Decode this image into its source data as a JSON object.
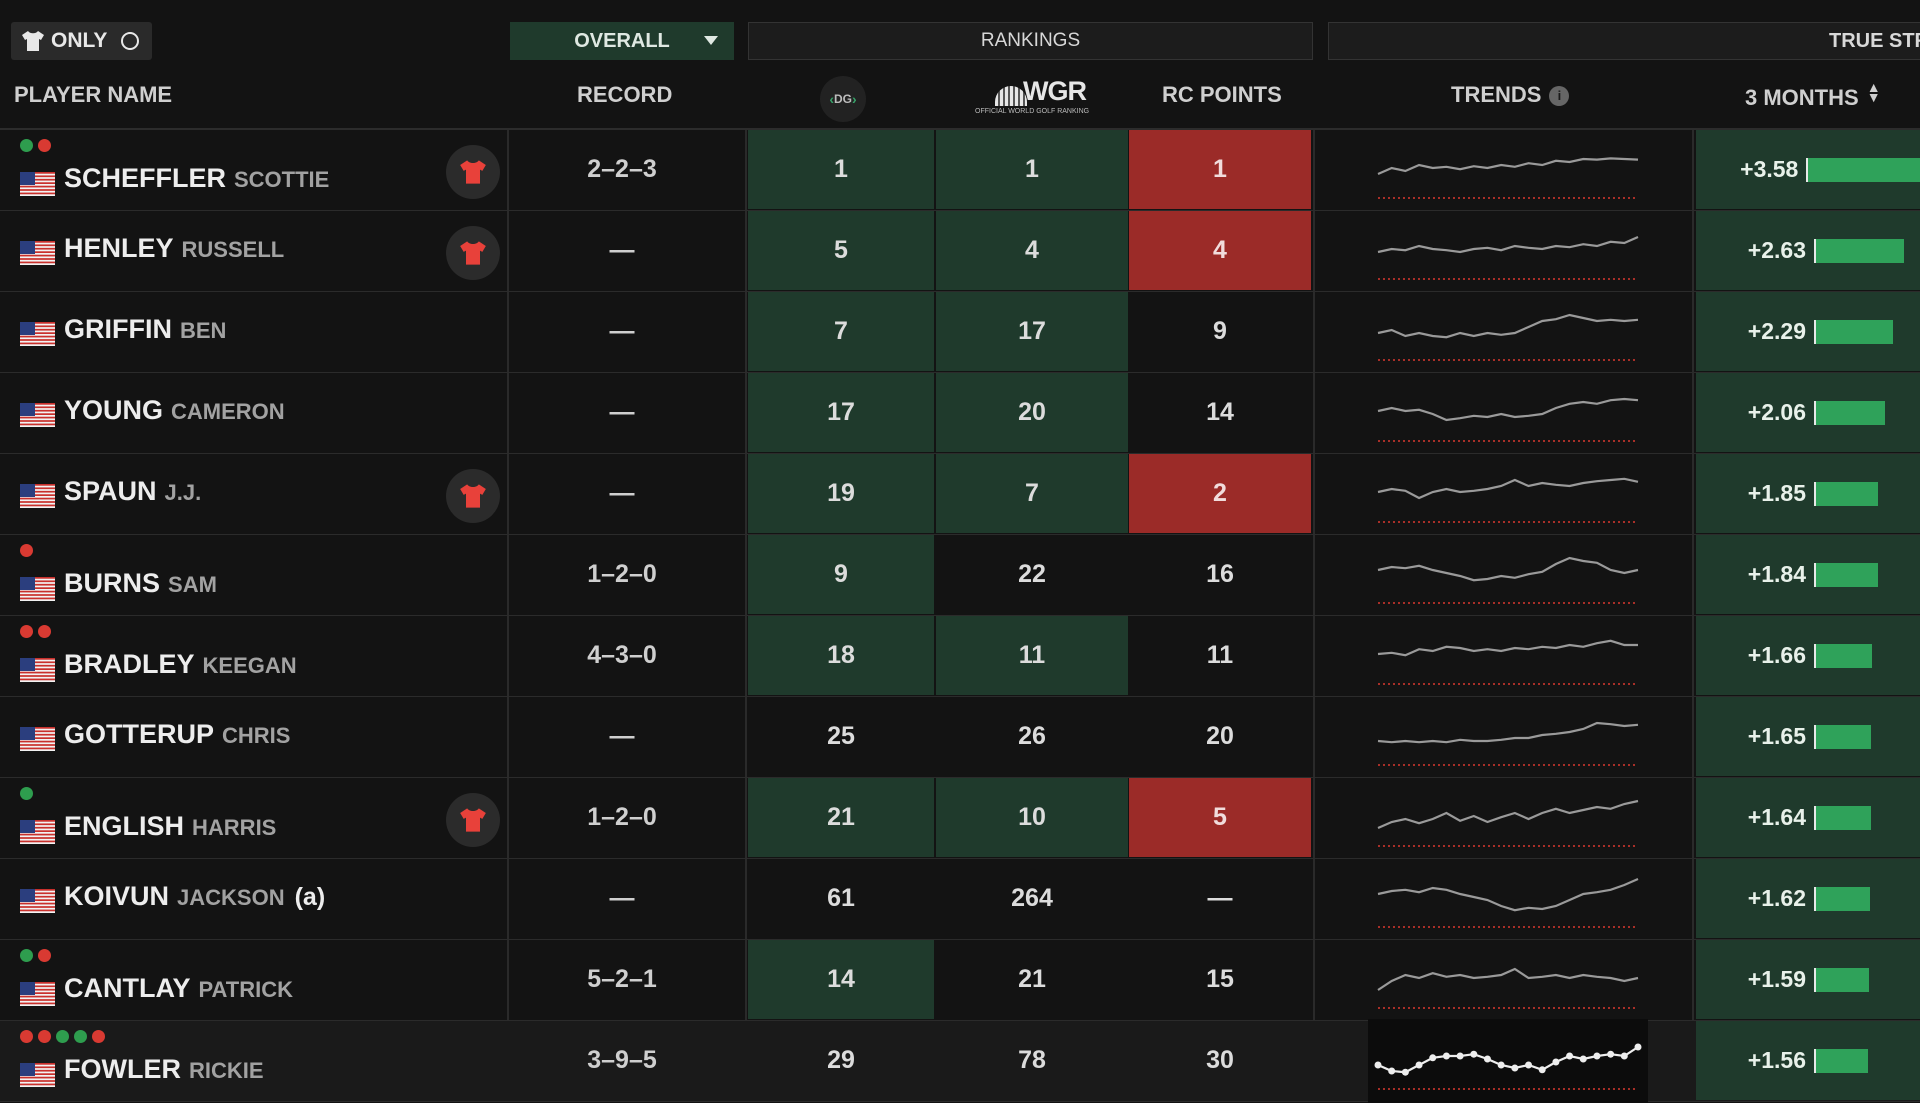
{
  "filters": {
    "only_label": "ONLY",
    "overall_label": "OVERALL",
    "rankings_label": "RANKINGS",
    "true_strength_label": "TRUE STR"
  },
  "header": {
    "player_name": "PLAYER NAME",
    "record": "RECORD",
    "dg_toggle": "DG",
    "owgr_logo": "WGR",
    "owgr_sub": "OFFICIAL WORLD GOLF RANKING",
    "rc_points": "RC POINTS",
    "trends": "TRENDS",
    "period": "3 MONTHS"
  },
  "colors": {
    "green_cell": "#1f3a2c",
    "red_cell": "#9b2b28",
    "bar": "#2fa25a",
    "dot_green": "#2e9d4e",
    "dot_red": "#d93a32"
  },
  "players": [
    {
      "last": "SCHEFFLER",
      "first": "SCOTTIE",
      "amateur": "",
      "dots": [
        "g",
        "r"
      ],
      "shirt": true,
      "record": "2–2–3",
      "dg": "1",
      "wgr": "1",
      "rc": "1",
      "dg_hl": true,
      "wgr_hl": true,
      "rc_hl": true,
      "ts": "+3.58",
      "ts_value": 3.58,
      "trend": [
        0.6,
        0.5,
        0.55,
        0.45,
        0.5,
        0.48,
        0.52,
        0.47,
        0.5,
        0.45,
        0.48,
        0.42,
        0.45,
        0.38,
        0.4,
        0.35,
        0.36,
        0.34,
        0.35,
        0.36
      ],
      "highlight": false
    },
    {
      "last": "HENLEY",
      "first": "RUSSELL",
      "amateur": "",
      "dots": [],
      "shirt": true,
      "record": "—",
      "dg": "5",
      "wgr": "4",
      "rc": "4",
      "dg_hl": true,
      "wgr_hl": true,
      "rc_hl": true,
      "ts": "+2.63",
      "ts_value": 2.63,
      "trend": [
        0.55,
        0.5,
        0.52,
        0.45,
        0.5,
        0.52,
        0.55,
        0.5,
        0.48,
        0.52,
        0.45,
        0.48,
        0.5,
        0.45,
        0.47,
        0.42,
        0.45,
        0.38,
        0.4,
        0.3
      ],
      "highlight": false
    },
    {
      "last": "GRIFFIN",
      "first": "BEN",
      "amateur": "",
      "dots": [],
      "shirt": false,
      "record": "—",
      "dg": "7",
      "wgr": "17",
      "rc": "9",
      "dg_hl": true,
      "wgr_hl": true,
      "rc_hl": false,
      "ts": "+2.29",
      "ts_value": 2.29,
      "trend": [
        0.55,
        0.5,
        0.6,
        0.55,
        0.6,
        0.62,
        0.55,
        0.6,
        0.55,
        0.58,
        0.55,
        0.45,
        0.35,
        0.32,
        0.25,
        0.3,
        0.35,
        0.33,
        0.35,
        0.33
      ],
      "highlight": false
    },
    {
      "last": "YOUNG",
      "first": "CAMERON",
      "amateur": "",
      "dots": [],
      "shirt": false,
      "record": "—",
      "dg": "17",
      "wgr": "20",
      "rc": "14",
      "dg_hl": true,
      "wgr_hl": true,
      "rc_hl": false,
      "ts": "+2.06",
      "ts_value": 2.06,
      "trend": [
        0.5,
        0.45,
        0.5,
        0.48,
        0.55,
        0.65,
        0.62,
        0.58,
        0.6,
        0.55,
        0.6,
        0.58,
        0.55,
        0.45,
        0.38,
        0.35,
        0.38,
        0.32,
        0.3,
        0.32
      ],
      "highlight": false
    },
    {
      "last": "SPAUN",
      "first": "J.J.",
      "amateur": "",
      "dots": [],
      "shirt": true,
      "record": "—",
      "dg": "19",
      "wgr": "7",
      "rc": "2",
      "dg_hl": true,
      "wgr_hl": true,
      "rc_hl": true,
      "ts": "+1.85",
      "ts_value": 1.85,
      "trend": [
        0.5,
        0.45,
        0.48,
        0.6,
        0.5,
        0.45,
        0.5,
        0.48,
        0.45,
        0.4,
        0.3,
        0.4,
        0.35,
        0.38,
        0.4,
        0.35,
        0.32,
        0.3,
        0.28,
        0.33
      ],
      "highlight": false
    },
    {
      "last": "BURNS",
      "first": "SAM",
      "amateur": "",
      "dots": [
        "r"
      ],
      "shirt": false,
      "record": "1–2–0",
      "dg": "9",
      "wgr": "22",
      "rc": "16",
      "dg_hl": true,
      "wgr_hl": false,
      "rc_hl": false,
      "ts": "+1.84",
      "ts_value": 1.84,
      "trend": [
        0.45,
        0.4,
        0.42,
        0.38,
        0.45,
        0.5,
        0.55,
        0.62,
        0.6,
        0.55,
        0.58,
        0.52,
        0.48,
        0.35,
        0.25,
        0.3,
        0.33,
        0.45,
        0.5,
        0.45
      ],
      "highlight": false
    },
    {
      "last": "BRADLEY",
      "first": "KEEGAN",
      "amateur": "",
      "dots": [
        "r",
        "r"
      ],
      "shirt": false,
      "record": "4–3–0",
      "dg": "18",
      "wgr": "11",
      "rc": "11",
      "dg_hl": true,
      "wgr_hl": true,
      "rc_hl": false,
      "ts": "+1.66",
      "ts_value": 1.66,
      "trend": [
        0.5,
        0.48,
        0.52,
        0.42,
        0.45,
        0.38,
        0.4,
        0.45,
        0.42,
        0.45,
        0.4,
        0.42,
        0.38,
        0.4,
        0.35,
        0.38,
        0.32,
        0.28,
        0.35,
        0.35
      ],
      "highlight": false
    },
    {
      "last": "GOTTERUP",
      "first": "CHRIS",
      "amateur": "",
      "dots": [],
      "shirt": false,
      "record": "—",
      "dg": "25",
      "wgr": "26",
      "rc": "20",
      "dg_hl": false,
      "wgr_hl": false,
      "rc_hl": false,
      "ts": "+1.65",
      "ts_value": 1.65,
      "trend": [
        0.6,
        0.62,
        0.6,
        0.62,
        0.6,
        0.62,
        0.58,
        0.6,
        0.6,
        0.58,
        0.55,
        0.55,
        0.5,
        0.48,
        0.45,
        0.4,
        0.3,
        0.32,
        0.35,
        0.33
      ],
      "highlight": false
    },
    {
      "last": "ENGLISH",
      "first": "HARRIS",
      "amateur": "",
      "dots": [
        "g"
      ],
      "shirt": true,
      "record": "1–2–0",
      "dg": "21",
      "wgr": "10",
      "rc": "5",
      "dg_hl": true,
      "wgr_hl": true,
      "rc_hl": true,
      "ts": "+1.64",
      "ts_value": 1.64,
      "trend": [
        0.7,
        0.6,
        0.55,
        0.62,
        0.55,
        0.45,
        0.58,
        0.5,
        0.6,
        0.52,
        0.45,
        0.55,
        0.45,
        0.38,
        0.45,
        0.4,
        0.35,
        0.38,
        0.3,
        0.25
      ],
      "highlight": false
    },
    {
      "last": "KOIVUN",
      "first": "JACKSON",
      "amateur": "(a)",
      "dots": [],
      "shirt": false,
      "record": "—",
      "dg": "61",
      "wgr": "264",
      "rc": "—",
      "dg_hl": false,
      "wgr_hl": false,
      "rc_hl": false,
      "ts": "+1.62",
      "ts_value": 1.62,
      "trend": [
        0.45,
        0.4,
        0.38,
        0.42,
        0.35,
        0.38,
        0.45,
        0.5,
        0.55,
        0.65,
        0.72,
        0.68,
        0.7,
        0.65,
        0.55,
        0.45,
        0.42,
        0.38,
        0.3,
        0.2
      ],
      "highlight": false
    },
    {
      "last": "CANTLAY",
      "first": "PATRICK",
      "amateur": "",
      "dots": [
        "g",
        "r"
      ],
      "shirt": false,
      "record": "5–2–1",
      "dg": "14",
      "wgr": "21",
      "rc": "15",
      "dg_hl": true,
      "wgr_hl": false,
      "rc_hl": false,
      "ts": "+1.59",
      "ts_value": 1.59,
      "trend": [
        0.7,
        0.55,
        0.45,
        0.5,
        0.42,
        0.48,
        0.45,
        0.5,
        0.48,
        0.45,
        0.35,
        0.5,
        0.48,
        0.45,
        0.5,
        0.45,
        0.48,
        0.5,
        0.55,
        0.5
      ],
      "highlight": false
    },
    {
      "last": "FOWLER",
      "first": "RICKIE",
      "amateur": "",
      "dots": [
        "r",
        "r",
        "g",
        "g",
        "r"
      ],
      "shirt": false,
      "record": "3–9–5",
      "dg": "29",
      "wgr": "78",
      "rc": "30",
      "dg_hl": false,
      "wgr_hl": false,
      "rc_hl": false,
      "ts": "+1.56",
      "ts_value": 1.56,
      "trend": [
        0.6,
        0.7,
        0.72,
        0.6,
        0.48,
        0.45,
        0.45,
        0.42,
        0.5,
        0.6,
        0.65,
        0.6,
        0.68,
        0.55,
        0.45,
        0.5,
        0.45,
        0.42,
        0.45,
        0.3
      ],
      "highlight": true
    }
  ]
}
